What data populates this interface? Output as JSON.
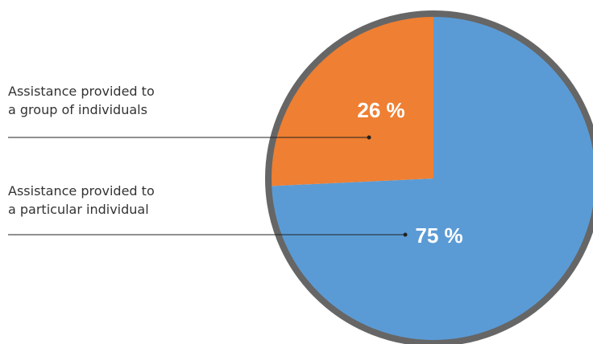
{
  "chart_data": {
    "type": "pie",
    "categories": [
      "Assistance provided to a group of individuals",
      "Assistance provided to a particular individual"
    ],
    "values": [
      26,
      75
    ],
    "value_labels": [
      "26 %",
      "75 %"
    ],
    "colors": [
      "#ef7f32",
      "#5b9bd5"
    ]
  }
}
